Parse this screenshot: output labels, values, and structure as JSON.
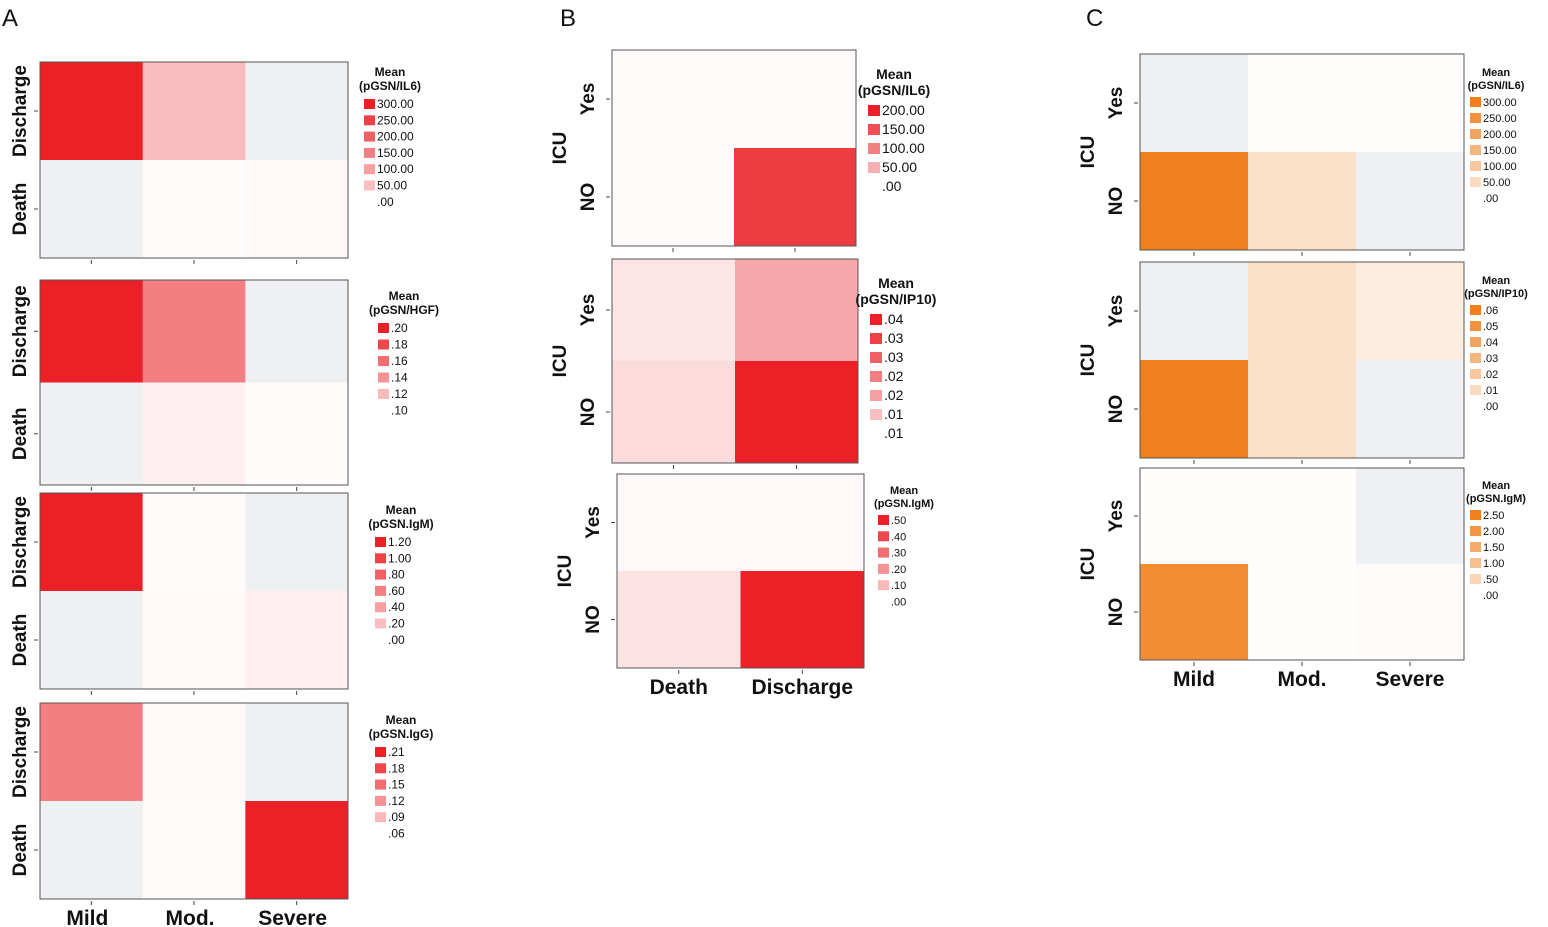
{
  "panels": [
    {
      "letter": "A"
    },
    {
      "letter": "B"
    },
    {
      "letter": "C"
    }
  ],
  "chart_data": [
    {
      "panel": "A",
      "type": "heatmap",
      "color": "#ec2127",
      "rows": [
        "Discharge",
        "Death"
      ],
      "cols": [
        "Mild",
        "Mod.",
        "Severe"
      ],
      "legend_title": [
        "Mean",
        "(pGSN/IL6)"
      ],
      "legend_labels": [
        "300.00",
        "250.00",
        "200.00",
        "150.00",
        "100.00",
        "50.00",
        ".00"
      ],
      "values": [
        [
          1.0,
          0.3,
          null
        ],
        [
          null,
          0.02,
          0.03
        ]
      ]
    },
    {
      "panel": "A",
      "type": "heatmap",
      "color": "#ec2127",
      "rows": [
        "Discharge",
        "Death"
      ],
      "cols": [
        "Mild",
        "Mod.",
        "Severe"
      ],
      "legend_title": [
        "Mean",
        "(pGSN/HGF)"
      ],
      "legend_labels": [
        ".20",
        ".18",
        ".16",
        ".14",
        ".12",
        ".10"
      ],
      "values": [
        [
          1.0,
          0.58,
          null
        ],
        [
          null,
          0.07,
          0.02
        ]
      ]
    },
    {
      "panel": "A",
      "type": "heatmap",
      "color": "#ec2127",
      "rows": [
        "Discharge",
        "Death"
      ],
      "cols": [
        "Mild",
        "Mod.",
        "Severe"
      ],
      "legend_title": [
        "Mean",
        "(pGSN.IgM)"
      ],
      "legend_labels": [
        "1.20",
        "1.00",
        ".80",
        ".60",
        ".40",
        ".20",
        ".00"
      ],
      "values": [
        [
          1.0,
          0.02,
          null
        ],
        [
          null,
          0.03,
          0.07
        ]
      ]
    },
    {
      "panel": "A",
      "type": "heatmap",
      "color": "#ec2127",
      "rows": [
        "Discharge",
        "Death"
      ],
      "cols": [
        "Mild",
        "Mod.",
        "Severe"
      ],
      "legend_title": [
        "Mean",
        "(pGSN.IgG)"
      ],
      "legend_labels": [
        ".21",
        ".18",
        ".15",
        ".12",
        ".09",
        ".06"
      ],
      "values": [
        [
          0.58,
          0.03,
          null
        ],
        [
          null,
          0.02,
          1.0
        ]
      ]
    },
    {
      "panel": "B",
      "type": "heatmap",
      "color": "#ec2127",
      "rows": [
        "Yes",
        "NO"
      ],
      "cols": [
        "Death",
        "Discharge"
      ],
      "row_group": "ICU",
      "legend_title": [
        "Mean",
        "(pGSN/IL6)"
      ],
      "legend_labels": [
        "200.00",
        "150.00",
        "100.00",
        "50.00",
        ".00"
      ],
      "values": [
        [
          0.02,
          0.02
        ],
        [
          0.02,
          0.88
        ]
      ]
    },
    {
      "panel": "B",
      "type": "heatmap",
      "color": "#ec2127",
      "rows": [
        "Yes",
        "NO"
      ],
      "cols": [
        "Death",
        "Discharge"
      ],
      "row_group": "ICU",
      "legend_title": [
        "Mean",
        "(pGSN/IP10)"
      ],
      "legend_labels": [
        ".04",
        ".03",
        ".03",
        ".02",
        ".02",
        ".01",
        ".01"
      ],
      "values": [
        [
          0.12,
          0.4
        ],
        [
          0.16,
          1.0
        ]
      ]
    },
    {
      "panel": "B",
      "type": "heatmap",
      "color": "#ec2127",
      "rows": [
        "Yes",
        "NO"
      ],
      "cols": [
        "Death",
        "Discharge"
      ],
      "row_group": "ICU",
      "legend_title": [
        "Mean",
        "(pGSN.IgM)"
      ],
      "legend_labels": [
        ".50",
        ".40",
        ".30",
        ".20",
        ".10",
        ".00"
      ],
      "values": [
        [
          0.03,
          0.03
        ],
        [
          0.13,
          1.0
        ]
      ]
    },
    {
      "panel": "C",
      "type": "heatmap",
      "color": "#f07f1e",
      "rows": [
        "Yes",
        "NO"
      ],
      "cols": [
        "Mild",
        "Mod.",
        "Severe"
      ],
      "row_group": "ICU",
      "legend_title": [
        "Mean",
        "(pGSN/IL6)"
      ],
      "legend_labels": [
        "300.00",
        "250.00",
        "200.00",
        "150.00",
        "100.00",
        "50.00",
        ".00"
      ],
      "values": [
        [
          null,
          0.02,
          0.02
        ],
        [
          1.0,
          0.24,
          null
        ]
      ]
    },
    {
      "panel": "C",
      "type": "heatmap",
      "color": "#f07f1e",
      "rows": [
        "Yes",
        "NO"
      ],
      "cols": [
        "Mild",
        "Mod.",
        "Severe"
      ],
      "row_group": "ICU",
      "legend_title": [
        "Mean",
        "(pGSN/IP10)"
      ],
      "legend_labels": [
        ".06",
        ".05",
        ".04",
        ".03",
        ".02",
        ".01",
        ".00"
      ],
      "values": [
        [
          null,
          0.24,
          0.14
        ],
        [
          1.0,
          0.24,
          null
        ]
      ]
    },
    {
      "panel": "C",
      "type": "heatmap",
      "color": "#f07f1e",
      "rows": [
        "Yes",
        "NO"
      ],
      "cols": [
        "Mild",
        "Mod.",
        "Severe"
      ],
      "row_group": "ICU",
      "legend_title": [
        "Mean",
        "(pGSN.IgM)"
      ],
      "legend_labels": [
        "2.50",
        "2.00",
        "1.50",
        "1.00",
        ".50",
        ".00"
      ],
      "values": [
        [
          0.01,
          0.01,
          null
        ],
        [
          0.9,
          0.01,
          0.03
        ]
      ]
    }
  ]
}
